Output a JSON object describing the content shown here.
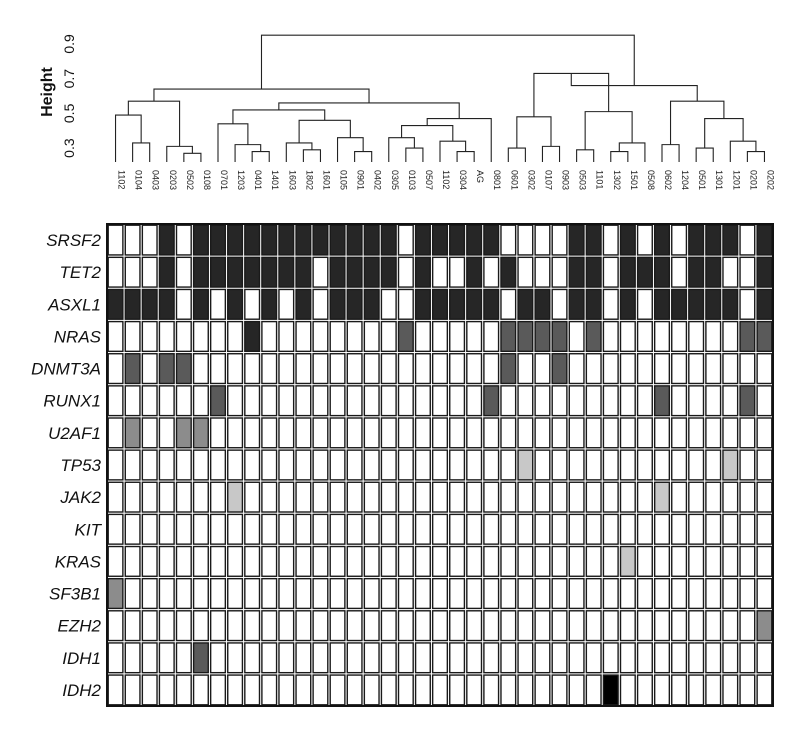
{
  "chart_data": {
    "type": "heatmap",
    "ylabel": "Height",
    "yticks": [
      "0.3",
      "0.5",
      "0.7",
      "0.9"
    ],
    "ylim": [
      0.22,
      0.98
    ],
    "samples": [
      "1102",
      "0104",
      "0403",
      "0203",
      "0502",
      "0108",
      "0701",
      "1203",
      "0401",
      "1401",
      "1603",
      "1802",
      "1601",
      "0105",
      "0901",
      "0402",
      "0305",
      "0103",
      "0507",
      "1102",
      "0304",
      "AG",
      "0801",
      "0601",
      "0302",
      "0107",
      "0903",
      "0503",
      "1101",
      "1302",
      "1501",
      "0508",
      "0602",
      "1204",
      "0501",
      "1301",
      "1201",
      "0201",
      "0202"
    ],
    "genes": [
      "SRSF2",
      "TET2",
      "ASXL1",
      "NRAS",
      "DNMT3A",
      "RUNX1",
      "U2AF1",
      "TP53",
      "JAK2",
      "KIT",
      "KRAS",
      "SF3B1",
      "EZH2",
      "IDH1",
      "IDH2"
    ],
    "levels": {
      "0": "#ffffff",
      "1": "#262626",
      "2": "#5a5a5a",
      "3": "#8c8c8c",
      "4": "#c8c8c8",
      "5": "#000000"
    },
    "matrix": [
      [
        0,
        0,
        0,
        1,
        0,
        1,
        1,
        1,
        1,
        1,
        1,
        1,
        1,
        1,
        1,
        1,
        1,
        0,
        1,
        1,
        1,
        1,
        1,
        0,
        0,
        0,
        0,
        1,
        1,
        0,
        1,
        0,
        1,
        0,
        1,
        1,
        1,
        0,
        1
      ],
      [
        0,
        0,
        0,
        1,
        0,
        1,
        1,
        1,
        1,
        1,
        1,
        1,
        0,
        1,
        1,
        1,
        1,
        0,
        1,
        0,
        0,
        1,
        0,
        1,
        0,
        0,
        0,
        1,
        1,
        0,
        1,
        1,
        1,
        0,
        1,
        1,
        0,
        0,
        1
      ],
      [
        1,
        1,
        1,
        1,
        0,
        1,
        0,
        1,
        0,
        1,
        0,
        1,
        0,
        1,
        1,
        1,
        0,
        0,
        1,
        1,
        1,
        1,
        1,
        0,
        1,
        1,
        0,
        1,
        1,
        0,
        1,
        0,
        1,
        1,
        1,
        1,
        1,
        0,
        1
      ],
      [
        0,
        0,
        0,
        0,
        0,
        0,
        0,
        0,
        1,
        0,
        0,
        0,
        0,
        0,
        0,
        0,
        0,
        2,
        0,
        0,
        0,
        0,
        0,
        2,
        2,
        2,
        2,
        0,
        2,
        0,
        0,
        0,
        0,
        0,
        0,
        0,
        0,
        2,
        2
      ],
      [
        0,
        2,
        0,
        2,
        2,
        0,
        0,
        0,
        0,
        0,
        0,
        0,
        0,
        0,
        0,
        0,
        0,
        0,
        0,
        0,
        0,
        0,
        0,
        2,
        0,
        0,
        2,
        0,
        0,
        0,
        0,
        0,
        0,
        0,
        0,
        0,
        0,
        0,
        0
      ],
      [
        0,
        0,
        0,
        0,
        0,
        0,
        2,
        0,
        0,
        0,
        0,
        0,
        0,
        0,
        0,
        0,
        0,
        0,
        0,
        0,
        0,
        0,
        2,
        0,
        0,
        0,
        0,
        0,
        0,
        0,
        0,
        0,
        2,
        0,
        0,
        0,
        0,
        2,
        0
      ],
      [
        0,
        3,
        0,
        0,
        3,
        3,
        0,
        0,
        0,
        0,
        0,
        0,
        0,
        0,
        0,
        0,
        0,
        0,
        0,
        0,
        0,
        0,
        0,
        0,
        0,
        0,
        0,
        0,
        0,
        0,
        0,
        0,
        0,
        0,
        0,
        0,
        0,
        0,
        0
      ],
      [
        0,
        0,
        0,
        0,
        0,
        0,
        0,
        0,
        0,
        0,
        0,
        0,
        0,
        0,
        0,
        0,
        0,
        0,
        0,
        0,
        0,
        0,
        0,
        0,
        4,
        0,
        0,
        0,
        0,
        0,
        0,
        0,
        0,
        0,
        0,
        0,
        4,
        0,
        0
      ],
      [
        0,
        0,
        0,
        0,
        0,
        0,
        0,
        4,
        0,
        0,
        0,
        0,
        0,
        0,
        0,
        0,
        0,
        0,
        0,
        0,
        0,
        0,
        0,
        0,
        0,
        0,
        0,
        0,
        0,
        0,
        0,
        0,
        4,
        0,
        0,
        0,
        0,
        0,
        0
      ],
      [
        0,
        0,
        0,
        0,
        0,
        0,
        0,
        0,
        0,
        0,
        0,
        0,
        0,
        0,
        0,
        0,
        0,
        0,
        0,
        0,
        0,
        0,
        0,
        0,
        0,
        0,
        0,
        0,
        0,
        0,
        0,
        0,
        0,
        0,
        0,
        0,
        0,
        0,
        0
      ],
      [
        0,
        0,
        0,
        0,
        0,
        0,
        0,
        0,
        0,
        0,
        0,
        0,
        0,
        0,
        0,
        0,
        0,
        0,
        0,
        0,
        0,
        0,
        0,
        0,
        0,
        0,
        0,
        0,
        0,
        0,
        4,
        0,
        0,
        0,
        0,
        0,
        0,
        0,
        0
      ],
      [
        3,
        0,
        0,
        0,
        0,
        0,
        0,
        0,
        0,
        0,
        0,
        0,
        0,
        0,
        0,
        0,
        0,
        0,
        0,
        0,
        0,
        0,
        0,
        0,
        0,
        0,
        0,
        0,
        0,
        0,
        0,
        0,
        0,
        0,
        0,
        0,
        0,
        0,
        0
      ],
      [
        0,
        0,
        0,
        0,
        0,
        0,
        0,
        0,
        0,
        0,
        0,
        0,
        0,
        0,
        0,
        0,
        0,
        0,
        0,
        0,
        0,
        0,
        0,
        0,
        0,
        0,
        0,
        0,
        0,
        0,
        0,
        0,
        0,
        0,
        0,
        0,
        0,
        0,
        3
      ],
      [
        0,
        0,
        0,
        0,
        0,
        2,
        0,
        0,
        0,
        0,
        0,
        0,
        0,
        0,
        0,
        0,
        0,
        0,
        0,
        0,
        0,
        0,
        0,
        0,
        0,
        0,
        0,
        0,
        0,
        0,
        0,
        0,
        0,
        0,
        0,
        0,
        0,
        0,
        0
      ],
      [
        0,
        0,
        0,
        0,
        0,
        0,
        0,
        0,
        0,
        0,
        0,
        0,
        0,
        0,
        0,
        0,
        0,
        0,
        0,
        0,
        0,
        0,
        0,
        0,
        0,
        0,
        0,
        0,
        0,
        5,
        0,
        0,
        0,
        0,
        0,
        0,
        0,
        0,
        0
      ]
    ],
    "dendrogram": {
      "merges": [
        {
          "a": 4,
          "b": 5,
          "h": 0.27
        },
        {
          "a": 3,
          "b": 39,
          "h": 0.31
        },
        {
          "a": 1,
          "b": 2,
          "h": 0.33
        },
        {
          "a": 0,
          "b": 41,
          "h": 0.49
        },
        {
          "a": 40,
          "b": 42,
          "h": 0.57
        },
        {
          "a": 8,
          "b": 9,
          "h": 0.28
        },
        {
          "a": 7,
          "b": 44,
          "h": 0.32
        },
        {
          "a": 6,
          "b": 45,
          "h": 0.44
        },
        {
          "a": 11,
          "b": 12,
          "h": 0.29
        },
        {
          "a": 10,
          "b": 47,
          "h": 0.33
        },
        {
          "a": 14,
          "b": 15,
          "h": 0.28
        },
        {
          "a": 13,
          "b": 49,
          "h": 0.36
        },
        {
          "a": 48,
          "b": 50,
          "h": 0.46
        },
        {
          "a": 46,
          "b": 51,
          "h": 0.52
        },
        {
          "a": 17,
          "b": 18,
          "h": 0.3
        },
        {
          "a": 16,
          "b": 53,
          "h": 0.36
        },
        {
          "a": 20,
          "b": 21,
          "h": 0.28
        },
        {
          "a": 19,
          "b": 55,
          "h": 0.34
        },
        {
          "a": 54,
          "b": 56,
          "h": 0.43
        },
        {
          "a": 57,
          "b": 22,
          "h": 0.47
        },
        {
          "a": 52,
          "b": 58,
          "h": 0.56
        },
        {
          "a": 43,
          "b": 59,
          "h": 0.64
        },
        {
          "a": 23,
          "b": 24,
          "h": 0.3
        },
        {
          "a": 25,
          "b": 26,
          "h": 0.31
        },
        {
          "a": 61,
          "b": 62,
          "h": 0.48
        },
        {
          "a": 27,
          "b": 28,
          "h": 0.29
        },
        {
          "a": 29,
          "b": 30,
          "h": 0.28
        },
        {
          "a": 65,
          "b": 31,
          "h": 0.33
        },
        {
          "a": 64,
          "b": 66,
          "h": 0.51
        },
        {
          "a": 63,
          "b": 67,
          "h": 0.73
        },
        {
          "a": 32,
          "b": 33,
          "h": 0.32
        },
        {
          "a": 34,
          "b": 35,
          "h": 0.3
        },
        {
          "a": 37,
          "b": 38,
          "h": 0.28
        },
        {
          "a": 36,
          "b": 71,
          "h": 0.34
        },
        {
          "a": 70,
          "b": 72,
          "h": 0.47
        },
        {
          "a": 69,
          "b": 73,
          "h": 0.57
        },
        {
          "a": 68,
          "b": 74,
          "h": 0.66
        },
        {
          "a": 60,
          "b": 75,
          "h": 0.95
        }
      ]
    }
  }
}
